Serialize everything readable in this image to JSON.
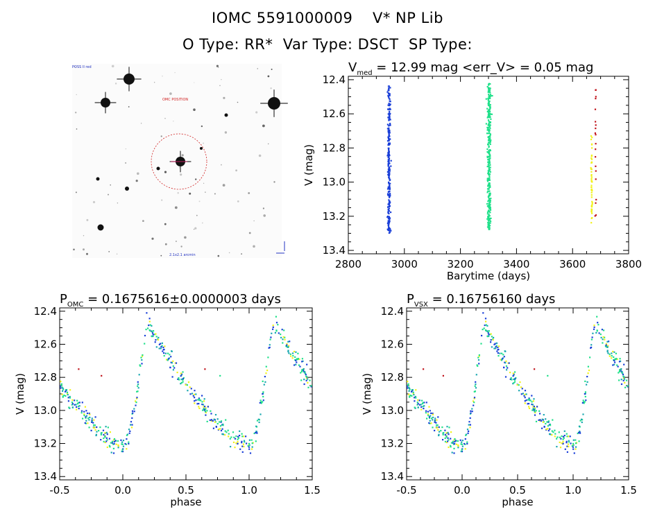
{
  "header": {
    "title": "IOMC 5591000009    V* NP Lib",
    "subtitle": "O Type: RR*  Var Type: DSCT  SP Type:"
  },
  "colors": {
    "blue": "#1a3fd8",
    "green": "#20e08a",
    "yellow": "#f2f21a",
    "red": "#c0141c",
    "teal": "#1aa8b0",
    "finder_circle": "#d02020"
  },
  "finder": {
    "labels": [
      "POSS II red",
      "OMC POSITION",
      "2.1x2.1 arcmin"
    ]
  },
  "chart_data": [
    {
      "id": "lightcurve",
      "type": "scatter",
      "title_main": "V",
      "title_sub": "med",
      "title_rest": " = 12.99 mag <err_V> = 0.05 mag",
      "xlabel": "Barytime (days)",
      "ylabel": "V (mag)",
      "xlim": [
        2800,
        3800
      ],
      "ylim": [
        13.42,
        12.38
      ],
      "xticks": [
        "2800",
        "3000",
        "3200",
        "3400",
        "3600",
        "3800"
      ],
      "xtick_values": [
        2800,
        3000,
        3200,
        3400,
        3600,
        3800
      ],
      "yticks": [
        "12.4",
        "12.6",
        "12.8",
        "13.0",
        "13.2",
        "13.4"
      ],
      "ytick_values": [
        12.4,
        12.6,
        12.8,
        13.0,
        13.2,
        13.4
      ],
      "clusters": [
        {
          "color": "blue",
          "x_center": 2945,
          "x_spread": 5,
          "y_range": [
            12.43,
            13.3
          ],
          "count": 260
        },
        {
          "color": "green",
          "x_center": 3302,
          "x_spread": 6,
          "y_range": [
            12.42,
            13.28
          ],
          "count": 320
        },
        {
          "color": "yellow",
          "x_center": 3668,
          "x_spread": 2,
          "y_range": [
            12.72,
            13.25
          ],
          "count": 50
        },
        {
          "color": "red",
          "x_center": 3682,
          "x_spread": 2,
          "y_range": [
            12.43,
            13.2
          ],
          "count": 20
        }
      ]
    },
    {
      "id": "phase-omc",
      "type": "scatter",
      "title_main": "P",
      "title_sub": "OMC",
      "title_rest": " = 0.1675616±0.0000003 days",
      "xlabel": "phase",
      "ylabel": "V (mag)",
      "xlim": [
        -0.5,
        1.5
      ],
      "ylim": [
        13.42,
        12.38
      ],
      "xticks": [
        "-0.5",
        "0.0",
        "0.5",
        "1.0",
        "1.5"
      ],
      "xtick_values": [
        -0.5,
        0.0,
        0.5,
        1.0,
        1.5
      ],
      "yticks": [
        "12.4",
        "12.6",
        "12.8",
        "13.0",
        "13.2",
        "13.4"
      ],
      "ytick_values": [
        12.4,
        12.6,
        12.8,
        13.0,
        13.2,
        13.4
      ],
      "light_curve": {
        "max_phase": 0.19,
        "max_mag": 12.46,
        "min_phase": 0.02,
        "min_mag": 13.22,
        "scatter": 0.06
      },
      "outliers": [
        {
          "x": -0.35,
          "y": 12.75,
          "color": "red"
        },
        {
          "x": -0.17,
          "y": 12.79,
          "color": "red"
        },
        {
          "x": 0.65,
          "y": 12.75,
          "color": "red"
        },
        {
          "x": 0.77,
          "y": 12.79,
          "color": "green"
        }
      ]
    },
    {
      "id": "phase-vsx",
      "type": "scatter",
      "title_main": "P",
      "title_sub": "VSX",
      "title_rest": " = 0.16756160 days",
      "xlabel": "phase",
      "ylabel": "V (mag)",
      "xlim": [
        -0.5,
        1.5
      ],
      "ylim": [
        13.42,
        12.38
      ],
      "xticks": [
        "-0.5",
        "0.0",
        "0.5",
        "1.0",
        "1.5"
      ],
      "xtick_values": [
        -0.5,
        0.0,
        0.5,
        1.0,
        1.5
      ],
      "yticks": [
        "12.4",
        "12.6",
        "12.8",
        "13.0",
        "13.2",
        "13.4"
      ],
      "ytick_values": [
        12.4,
        12.6,
        12.8,
        13.0,
        13.2,
        13.4
      ],
      "light_curve": {
        "max_phase": 0.19,
        "max_mag": 12.46,
        "min_phase": 0.02,
        "min_mag": 13.22,
        "scatter": 0.06
      },
      "outliers": [
        {
          "x": -0.35,
          "y": 12.75,
          "color": "red"
        },
        {
          "x": -0.17,
          "y": 12.79,
          "color": "red"
        },
        {
          "x": 0.65,
          "y": 12.75,
          "color": "red"
        },
        {
          "x": 0.77,
          "y": 12.79,
          "color": "green"
        }
      ]
    }
  ]
}
